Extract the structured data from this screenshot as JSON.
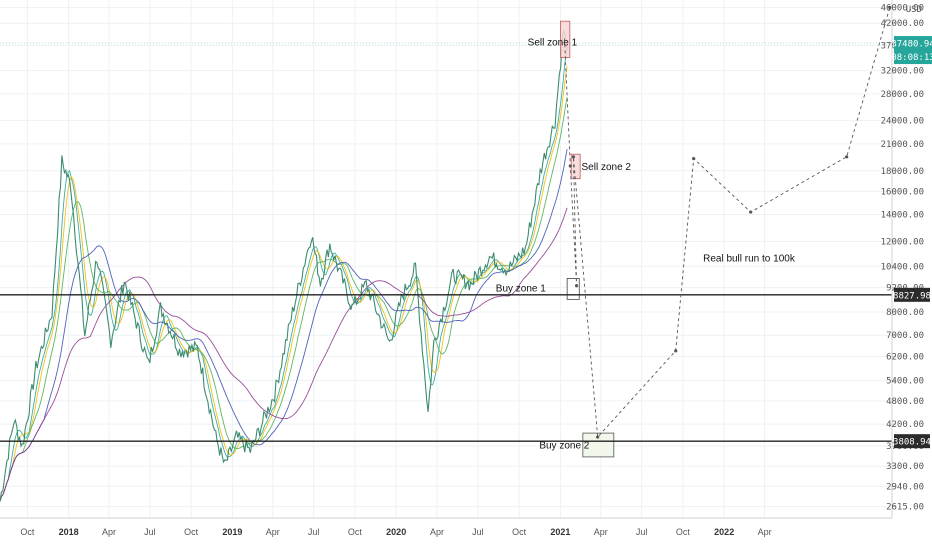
{
  "chart_data": {
    "type": "line",
    "title": "",
    "currency": "USD",
    "y_scale": "log",
    "ylim": [
      2450,
      48000
    ],
    "y_ticks": [
      {
        "v": 46000,
        "label": "46000.00"
      },
      {
        "v": 42000,
        "label": "42000.00"
      },
      {
        "v": 37000,
        "label": "37000.00"
      },
      {
        "v": 32000,
        "label": "32000.00"
      },
      {
        "v": 28000,
        "label": "28000.00"
      },
      {
        "v": 24000,
        "label": "24000.00"
      },
      {
        "v": 21000,
        "label": "21000.00"
      },
      {
        "v": 18000,
        "label": "18000.00"
      },
      {
        "v": 16000,
        "label": "16000.00"
      },
      {
        "v": 14000,
        "label": "14000.00"
      },
      {
        "v": 12000,
        "label": "12000.00"
      },
      {
        "v": 10400,
        "label": "10400.00"
      },
      {
        "v": 9200,
        "label": "9200.00"
      },
      {
        "v": 8000,
        "label": "8000.00"
      },
      {
        "v": 7000,
        "label": "7000.00"
      },
      {
        "v": 6200,
        "label": "6200.00"
      },
      {
        "v": 5400,
        "label": "5400.00"
      },
      {
        "v": 4800,
        "label": "4800.00"
      },
      {
        "v": 4200,
        "label": "4200.00"
      },
      {
        "v": 3700,
        "label": "3700.00"
      },
      {
        "v": 3300,
        "label": "3300.00"
      },
      {
        "v": 2940,
        "label": "2940.00"
      },
      {
        "v": 2615,
        "label": "2615.00"
      }
    ],
    "xlim": [
      "2017-08-01",
      "2023-01-10"
    ],
    "x_ticks": [
      {
        "d": "2017-10-01",
        "label": "Oct",
        "year": false
      },
      {
        "d": "2018-01-01",
        "label": "2018",
        "year": true
      },
      {
        "d": "2018-04-01",
        "label": "Apr",
        "year": false
      },
      {
        "d": "2018-07-01",
        "label": "Jul",
        "year": false
      },
      {
        "d": "2018-10-01",
        "label": "Oct",
        "year": false
      },
      {
        "d": "2019-01-01",
        "label": "2019",
        "year": true
      },
      {
        "d": "2019-04-01",
        "label": "Apr",
        "year": false
      },
      {
        "d": "2019-07-01",
        "label": "Jul",
        "year": false
      },
      {
        "d": "2019-10-01",
        "label": "Oct",
        "year": false
      },
      {
        "d": "2020-01-01",
        "label": "2020",
        "year": true
      },
      {
        "d": "2020-04-01",
        "label": "Apr",
        "year": false
      },
      {
        "d": "2020-07-01",
        "label": "Jul",
        "year": false
      },
      {
        "d": "2020-10-01",
        "label": "Oct",
        "year": false
      },
      {
        "d": "2021-01-01",
        "label": "2021",
        "year": true
      },
      {
        "d": "2021-04-01",
        "label": "Apr",
        "year": false
      },
      {
        "d": "2021-07-01",
        "label": "Jul",
        "year": false
      },
      {
        "d": "2021-10-01",
        "label": "Oct",
        "year": false
      },
      {
        "d": "2022-01-01",
        "label": "2022",
        "year": true
      },
      {
        "d": "2022-04-01",
        "label": "Apr",
        "year": false
      }
    ],
    "price_series": [
      [
        "2017-08-01",
        2700
      ],
      [
        "2017-09-01",
        4300
      ],
      [
        "2017-09-20",
        3700
      ],
      [
        "2017-10-20",
        5800
      ],
      [
        "2017-11-25",
        8000
      ],
      [
        "2017-12-17",
        19000
      ],
      [
        "2018-01-06",
        16500
      ],
      [
        "2018-02-06",
        7000
      ],
      [
        "2018-03-05",
        11000
      ],
      [
        "2018-04-05",
        6800
      ],
      [
        "2018-05-05",
        9600
      ],
      [
        "2018-06-28",
        5900
      ],
      [
        "2018-07-25",
        8200
      ],
      [
        "2018-09-05",
        6400
      ],
      [
        "2018-10-15",
        6500
      ],
      [
        "2018-11-25",
        3900
      ],
      [
        "2018-12-15",
        3300
      ],
      [
        "2019-01-10",
        3900
      ],
      [
        "2019-02-10",
        3600
      ],
      [
        "2019-04-05",
        5000
      ],
      [
        "2019-05-15",
        8000
      ],
      [
        "2019-06-26",
        12500
      ],
      [
        "2019-07-16",
        9500
      ],
      [
        "2019-08-06",
        11800
      ],
      [
        "2019-09-25",
        8200
      ],
      [
        "2019-10-26",
        9400
      ],
      [
        "2019-12-17",
        6700
      ],
      [
        "2020-01-15",
        8800
      ],
      [
        "2020-02-13",
        10300
      ],
      [
        "2020-03-12",
        4500
      ],
      [
        "2020-03-25",
        6700
      ],
      [
        "2020-05-07",
        9900
      ],
      [
        "2020-06-15",
        9400
      ],
      [
        "2020-07-27",
        11000
      ],
      [
        "2020-09-05",
        10200
      ],
      [
        "2020-10-15",
        11500
      ],
      [
        "2020-11-20",
        18500
      ],
      [
        "2020-12-20",
        24000
      ],
      [
        "2021-01-08",
        40500
      ],
      [
        "2021-01-16",
        36000
      ]
    ],
    "projection_series": [
      [
        "2021-01-10",
        38500
      ],
      [
        "2021-01-23",
        18500
      ],
      [
        "2021-02-06",
        9300
      ],
      [
        "2021-01-30",
        19500
      ],
      [
        "2021-03-25",
        3900
      ],
      [
        "2021-09-15",
        6400
      ],
      [
        "2021-10-25",
        19300
      ],
      [
        "2022-03-01",
        14200
      ],
      [
        "2022-10-01",
        19500
      ],
      [
        "2023-01-05",
        46000
      ]
    ],
    "moving_averages": [
      {
        "color": "#26a69a",
        "period": 20
      },
      {
        "color": "#f5b800",
        "period": 30
      },
      {
        "color": "#4caf50",
        "period": 50
      },
      {
        "color": "#3f51b5",
        "period": 100
      },
      {
        "color": "#8e3b8e",
        "period": 200
      }
    ],
    "horizontal_levels": [
      {
        "value": 8827.98,
        "label": "8827.98"
      },
      {
        "value": 3808.94,
        "label": "3808.94"
      }
    ],
    "current_price": {
      "label": "37480.94",
      "value": 37480.94,
      "countdown": "08:08:13",
      "color": "#26a69a"
    },
    "zones": [
      {
        "name": "Sell zone 1",
        "from": "2021-01-01",
        "to": "2021-01-22",
        "low": 34500,
        "high": 42500,
        "fill": "#f8d7d7",
        "stroke": "#c45a5a"
      },
      {
        "name": "Sell zone 2",
        "from": "2021-01-25",
        "to": "2021-02-14",
        "low": 17200,
        "high": 19800,
        "fill": "#f8d7d7",
        "stroke": "#c45a5a"
      },
      {
        "name": "Buy zone 1",
        "from": "2021-01-16",
        "to": "2021-02-12",
        "low": 8600,
        "high": 9700,
        "fill": "#ffffff",
        "stroke": "#444444"
      },
      {
        "name": "Buy zone 2",
        "from": "2021-02-20",
        "to": "2021-04-30",
        "low": 3480,
        "high": 3990,
        "fill": "#eef6e6",
        "stroke": "#555555"
      }
    ],
    "annotations": [
      {
        "text": "Sell zone 1",
        "d": "2020-10-20",
        "v": 37000
      },
      {
        "text": "Sell zone 2",
        "d": "2021-02-17",
        "v": 18100
      },
      {
        "text": "Buy zone 1",
        "d": "2020-08-10",
        "v": 9000
      },
      {
        "text": "Buy zone 2",
        "d": "2020-11-15",
        "v": 3650
      },
      {
        "text": "Real bull run to 100k",
        "d": "2021-11-15",
        "v": 10700
      }
    ]
  }
}
